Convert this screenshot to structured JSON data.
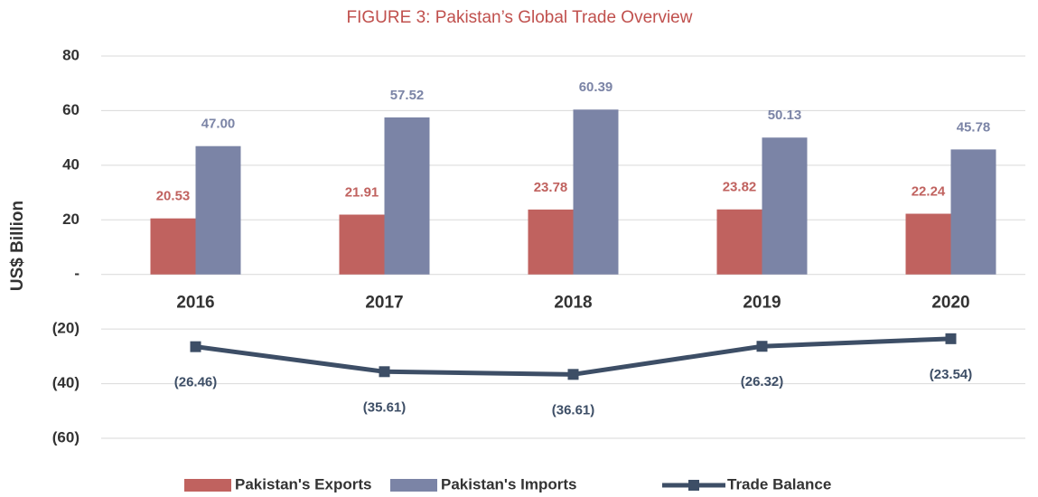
{
  "chart_data": {
    "type": "bar",
    "title": "FIGURE 3: Pakistan’s Global Trade Overview",
    "y_label": "US$ Billion",
    "categories": [
      "2016",
      "2017",
      "2018",
      "2019",
      "2020"
    ],
    "series": [
      {
        "name": "Pakistan's Exports",
        "type": "bar",
        "color": "#c0625f",
        "values": [
          20.53,
          21.91,
          23.78,
          23.82,
          22.24
        ],
        "value_labels": [
          "20.53",
          "21.91",
          "23.78",
          "23.82",
          "22.24"
        ]
      },
      {
        "name": "Pakistan's Imports",
        "type": "bar",
        "color": "#7b84a6",
        "values": [
          47,
          57.52,
          60.39,
          50.13,
          45.78
        ],
        "value_labels": [
          "47.00",
          "57.52",
          "60.39",
          "50.13",
          "45.78"
        ]
      },
      {
        "name": "Trade Balance",
        "type": "line",
        "color": "#3d4e66",
        "values": [
          -26.46,
          -35.61,
          -36.61,
          -26.32,
          -23.54
        ],
        "value_labels": [
          "(26.46)",
          "(35.61)",
          "(36.61)",
          "(26.32)",
          "(23.54)"
        ]
      }
    ],
    "ylim": [
      -60,
      80
    ],
    "yticks": [
      80,
      60,
      40,
      20,
      {
        "value": 0,
        "label": "-"
      },
      {
        "value": -20,
        "label": "(20)"
      },
      {
        "value": -40,
        "label": "(40)"
      },
      {
        "value": -60,
        "label": "(60)"
      }
    ],
    "grid": true,
    "legend": "bottom"
  }
}
